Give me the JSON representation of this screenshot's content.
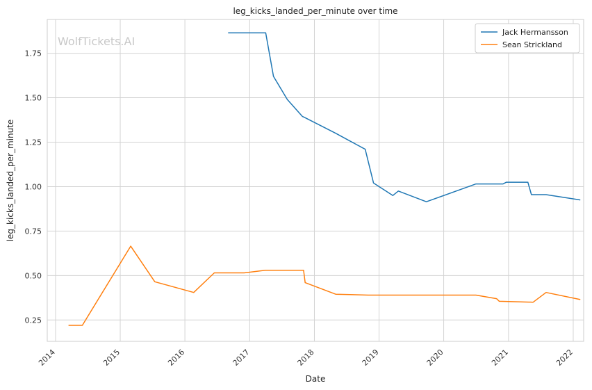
{
  "chart_data": {
    "type": "line",
    "title": "leg_kicks_landed_per_minute over time",
    "xlabel": "Date",
    "ylabel": "leg_kicks_landed_per_minute",
    "watermark": "WolfTickets.AI",
    "xlim": [
      "2013-11-15",
      "2022-03-01"
    ],
    "ylim": [
      0.13,
      1.94
    ],
    "x_ticks": [
      "2014",
      "2015",
      "2016",
      "2017",
      "2018",
      "2019",
      "2020",
      "2021",
      "2022"
    ],
    "y_ticks": [
      "0.25",
      "0.50",
      "0.75",
      "1.00",
      "1.25",
      "1.50",
      "1.75"
    ],
    "grid": true,
    "legend_position": "top-right",
    "series": [
      {
        "name": "Jack Hermansson",
        "color": "#1f77b4",
        "points": [
          [
            "2016-09-01",
            1.865
          ],
          [
            "2017-04-01",
            1.865
          ],
          [
            "2017-05-15",
            1.62
          ],
          [
            "2017-08-01",
            1.49
          ],
          [
            "2017-10-25",
            1.395
          ],
          [
            "2017-11-05",
            1.39
          ],
          [
            "2018-05-01",
            1.3
          ],
          [
            "2018-10-15",
            1.21
          ],
          [
            "2018-12-01",
            1.02
          ],
          [
            "2019-03-20",
            0.95
          ],
          [
            "2019-04-20",
            0.975
          ],
          [
            "2019-09-25",
            0.915
          ],
          [
            "2020-07-01",
            1.015
          ],
          [
            "2020-12-01",
            1.015
          ],
          [
            "2020-12-20",
            1.025
          ],
          [
            "2021-04-20",
            1.025
          ],
          [
            "2021-05-10",
            0.955
          ],
          [
            "2021-08-01",
            0.955
          ],
          [
            "2022-02-10",
            0.925
          ]
        ]
      },
      {
        "name": "Sean Strickland",
        "color": "#ff7f0e",
        "points": [
          [
            "2014-03-15",
            0.22
          ],
          [
            "2014-06-01",
            0.22
          ],
          [
            "2015-03-01",
            0.665
          ],
          [
            "2015-07-15",
            0.465
          ],
          [
            "2016-02-20",
            0.405
          ],
          [
            "2016-06-15",
            0.515
          ],
          [
            "2016-12-01",
            0.515
          ],
          [
            "2017-04-01",
            0.53
          ],
          [
            "2017-11-01",
            0.53
          ],
          [
            "2017-11-10",
            0.46
          ],
          [
            "2018-05-01",
            0.395
          ],
          [
            "2018-11-01",
            0.39
          ],
          [
            "2020-07-01",
            0.39
          ],
          [
            "2020-10-25",
            0.37
          ],
          [
            "2020-11-10",
            0.355
          ],
          [
            "2021-05-20",
            0.35
          ],
          [
            "2021-08-01",
            0.405
          ],
          [
            "2022-02-10",
            0.365
          ]
        ]
      }
    ]
  }
}
